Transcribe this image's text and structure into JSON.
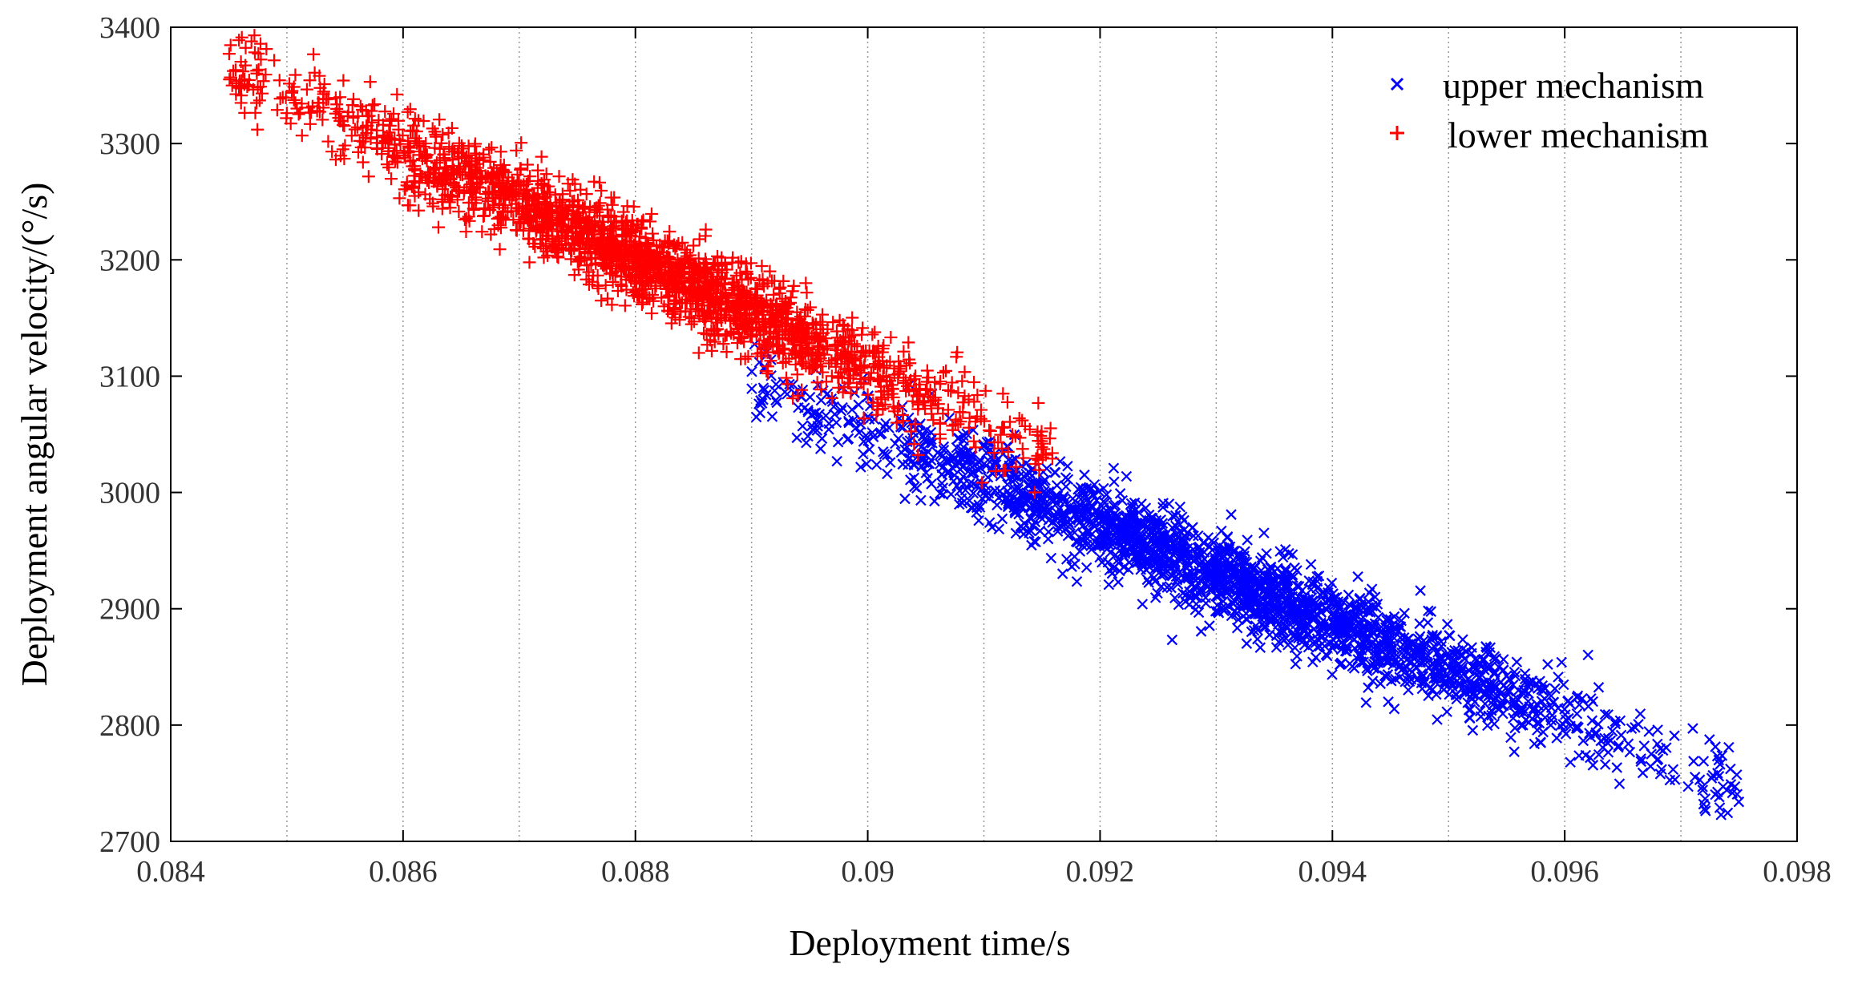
{
  "chart_data": {
    "type": "scatter",
    "title": "",
    "xlabel": "Deployment time/s",
    "ylabel": "Deployment angular velocity/(°/s)",
    "xlim": [
      0.084,
      0.098
    ],
    "ylim": [
      2700,
      3400
    ],
    "x_ticks": [
      0.084,
      0.086,
      0.088,
      0.09,
      0.092,
      0.094,
      0.096,
      0.098
    ],
    "x_tick_labels": [
      "0.084",
      "0.086",
      "0.088",
      "0.09",
      "0.092",
      "0.094",
      "0.096",
      "0.098"
    ],
    "y_ticks": [
      2700,
      2800,
      2900,
      3000,
      3100,
      3200,
      3300,
      3400
    ],
    "y_tick_labels": [
      "2700",
      "2800",
      "2900",
      "3000",
      "3100",
      "3200",
      "3300",
      "3400"
    ],
    "x_minor_gridlines": [
      0.085,
      0.086,
      0.087,
      0.088,
      0.089,
      0.09,
      0.091,
      0.092,
      0.093,
      0.094,
      0.095,
      0.096,
      0.097
    ],
    "grid": "vertical dotted",
    "legend_position": "top-right",
    "series": [
      {
        "name": "upper mechanism",
        "marker": "x",
        "color": "#0000ff",
        "trend": {
          "x_start": 0.089,
          "y_start": 3095,
          "x_end": 0.0975,
          "y_end": 2745
        },
        "x_range": [
          0.089,
          0.0975
        ],
        "spread_y": 18,
        "point_count": 2200
      },
      {
        "name": "lower mechanism",
        "marker": "+",
        "color": "#ff0000",
        "trend": {
          "x_start": 0.0845,
          "y_start": 3368,
          "x_end": 0.0916,
          "y_end": 3030
        },
        "x_range": [
          0.0845,
          0.0916
        ],
        "spread_y": 18,
        "point_count": 2200
      }
    ]
  }
}
